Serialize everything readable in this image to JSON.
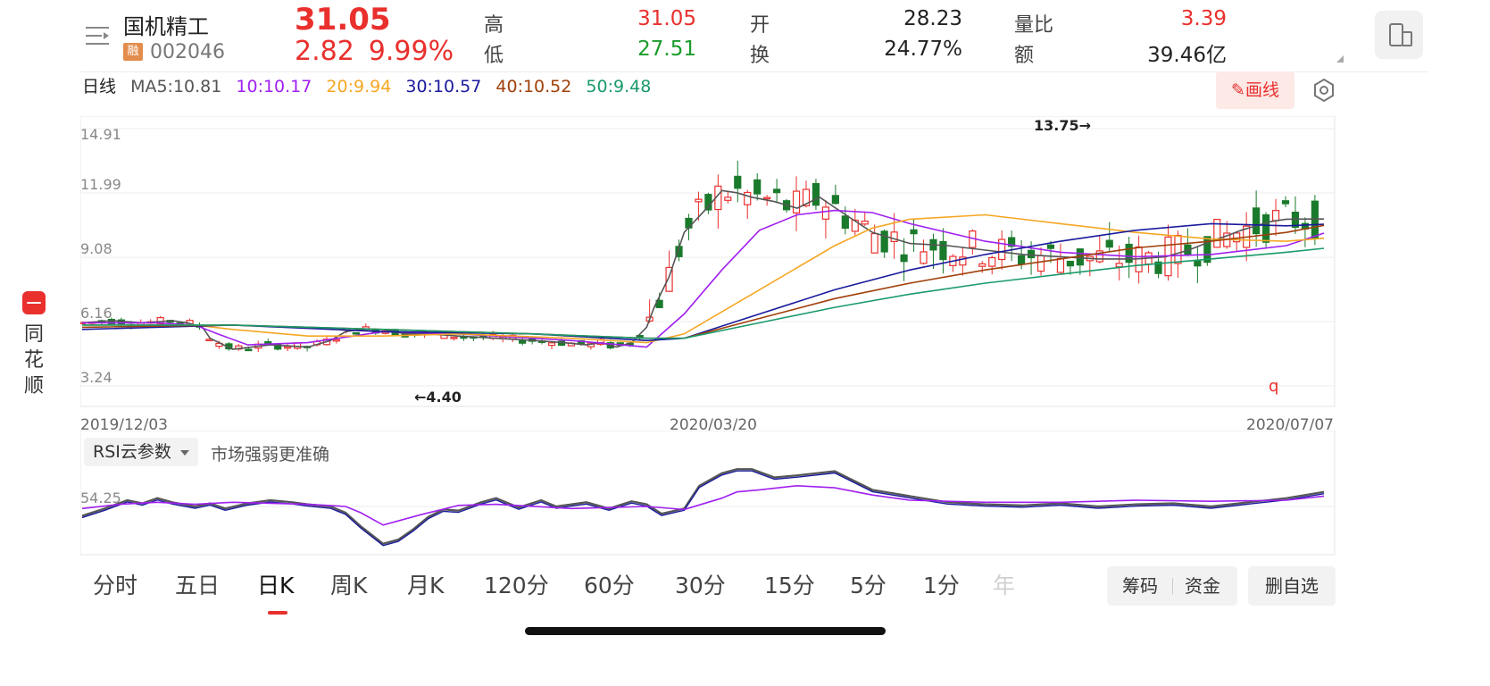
{
  "brand": {
    "chars": [
      "同",
      "花",
      "顺"
    ]
  },
  "header": {
    "name": "国机精工",
    "margin_badge": "融",
    "code": "002046",
    "price": "31.05",
    "change": "2.82",
    "change_pct": "9.99%",
    "high_label": "高",
    "high_value": "31.05",
    "low_label": "低",
    "low_value": "27.51",
    "open_label": "开",
    "open_value": "28.23",
    "turnover_label": "换",
    "turnover_value": "24.77%",
    "volratio_label": "量比",
    "volratio_value": "3.39",
    "amount_label": "额",
    "amount_value": "39.46亿"
  },
  "ma": {
    "period": "日线",
    "ma5": "MA5:10.81",
    "ma10": "10:10.17",
    "ma20": "20:9.94",
    "ma30": "30:10.57",
    "ma40": "40:10.52",
    "ma50": "50:9.48"
  },
  "draw_button": "画线",
  "colors": {
    "up": "#e9302d",
    "down": "#1a7a2c",
    "ma5": "#555555",
    "ma10": "#a020f0",
    "ma20": "#f5a623",
    "ma30": "#1a1a9c",
    "ma40": "#a0400a",
    "ma50": "#1a9a6a"
  },
  "chart_data": [
    {
      "type": "line",
      "title": "日线",
      "y_ticks": [
        "14.91",
        "11.99",
        "9.08",
        "6.16",
        "3.24"
      ],
      "x_ticks": [
        "2019/12/03",
        "2020/03/20",
        "2020/07/07"
      ],
      "ylim": [
        3.24,
        14.91
      ],
      "annotations": {
        "max_label": "13.75→",
        "min_label": "←4.40",
        "end_marker": "q"
      },
      "series": [
        {
          "name": "MA5",
          "x": [
            0,
            8,
            16,
            24,
            28,
            32,
            34,
            40,
            50,
            60,
            66,
            70,
            74,
            80,
            86,
            92,
            100,
            110,
            120,
            128,
            134,
            138,
            142,
            146,
            150,
            152,
            156,
            160,
            166,
            170,
            174,
            178,
            184,
            190,
            196,
            202,
            210,
            220,
            230,
            240,
            250,
            260,
            270,
            280,
            288,
            294,
            300,
            305,
            308,
            312,
            316,
            320,
            326,
            330
          ],
          "values": [
            6.1,
            6.2,
            6.1,
            6.2,
            6.1,
            5.9,
            5.4,
            4.9,
            5.1,
            5.0,
            5.3,
            5.7,
            5.8,
            5.8,
            5.6,
            5.6,
            5.5,
            5.4,
            5.3,
            5.2,
            5.1,
            5.2,
            5.0,
            5.2,
            5.9,
            6.8,
            8.2,
            10.2,
            11.3,
            12.1,
            12.0,
            11.8,
            11.6,
            11.3,
            11.8,
            11.1,
            10.2,
            9.7,
            9.6,
            9.4,
            9.2,
            9.1,
            9.0,
            9.0,
            9.1,
            9.4,
            9.8,
            10.1,
            10.3,
            10.5,
            10.7,
            10.8,
            10.81,
            10.81
          ]
        },
        {
          "name": "MA10",
          "x": [
            0,
            20,
            30,
            36,
            44,
            60,
            80,
            100,
            130,
            150,
            160,
            170,
            180,
            190,
            200,
            210,
            220,
            240,
            260,
            280,
            300,
            320,
            330
          ],
          "values": [
            6.1,
            6.1,
            6.0,
            5.6,
            5.1,
            5.2,
            5.7,
            5.6,
            5.3,
            5.0,
            6.5,
            8.5,
            10.3,
            11.0,
            11.2,
            11.1,
            10.6,
            9.8,
            9.3,
            9.1,
            9.2,
            9.6,
            10.17
          ]
        },
        {
          "name": "MA20",
          "x": [
            0,
            30,
            40,
            60,
            80,
            100,
            130,
            150,
            160,
            180,
            200,
            210,
            220,
            240,
            260,
            280,
            300,
            320,
            330
          ],
          "values": [
            6.0,
            6.0,
            5.8,
            5.5,
            5.5,
            5.6,
            5.4,
            5.2,
            5.6,
            7.6,
            9.6,
            10.4,
            10.8,
            11.0,
            10.6,
            10.2,
            9.9,
            9.8,
            9.94
          ]
        },
        {
          "name": "MA30",
          "x": [
            0,
            40,
            80,
            120,
            150,
            160,
            180,
            200,
            220,
            240,
            260,
            280,
            300,
            320,
            330
          ],
          "values": [
            5.8,
            6.0,
            5.7,
            5.6,
            5.3,
            5.4,
            6.5,
            7.6,
            8.5,
            9.2,
            9.8,
            10.3,
            10.6,
            10.5,
            10.57
          ]
        },
        {
          "name": "MA40",
          "x": [
            0,
            40,
            80,
            120,
            150,
            160,
            180,
            200,
            220,
            240,
            260,
            280,
            300,
            320,
            330
          ],
          "values": [
            5.9,
            6.0,
            5.8,
            5.6,
            5.4,
            5.4,
            6.3,
            7.2,
            7.9,
            8.5,
            9.0,
            9.5,
            9.8,
            10.2,
            10.52
          ]
        },
        {
          "name": "MA50",
          "x": [
            0,
            40,
            80,
            120,
            150,
            160,
            180,
            200,
            220,
            240,
            260,
            280,
            300,
            320,
            330
          ],
          "values": [
            6.0,
            6.0,
            5.8,
            5.6,
            5.4,
            5.4,
            6.1,
            6.8,
            7.4,
            7.9,
            8.3,
            8.7,
            9.0,
            9.3,
            9.48
          ]
        }
      ]
    },
    {
      "type": "line",
      "title": "RSI",
      "y_ticks": [
        "54.25"
      ],
      "ylim": [
        0,
        100
      ],
      "series": [
        {
          "name": "RSI1",
          "x": [
            0,
            6,
            12,
            16,
            20,
            24,
            30,
            34,
            38,
            44,
            50,
            56,
            60,
            66,
            70,
            74,
            80,
            84,
            88,
            92,
            96,
            100,
            106,
            110,
            116,
            122,
            126,
            130,
            134,
            140,
            146,
            150,
            154,
            160,
            164,
            170,
            174,
            178,
            184,
            190,
            200,
            210,
            220,
            230,
            240,
            250,
            260,
            270,
            280,
            290,
            300,
            310,
            320,
            330
          ],
          "values": [
            35,
            42,
            50,
            47,
            52,
            48,
            44,
            47,
            42,
            47,
            50,
            48,
            46,
            44,
            38,
            25,
            8,
            12,
            22,
            34,
            41,
            40,
            48,
            52,
            43,
            50,
            44,
            46,
            48,
            42,
            49,
            46,
            37,
            42,
            64,
            76,
            80,
            80,
            72,
            74,
            78,
            60,
            54,
            48,
            46,
            45,
            47,
            44,
            46,
            47,
            44,
            48,
            52,
            58
          ]
        },
        {
          "name": "RSI2",
          "x": [
            0,
            10,
            20,
            30,
            40,
            60,
            70,
            74,
            80,
            90,
            100,
            110,
            130,
            150,
            160,
            170,
            174,
            180,
            190,
            200,
            210,
            220,
            240,
            260,
            280,
            300,
            320,
            330
          ],
          "values": [
            42,
            46,
            48,
            46,
            48,
            46,
            44,
            38,
            26,
            36,
            45,
            46,
            42,
            44,
            41,
            52,
            58,
            60,
            64,
            62,
            55,
            50,
            48,
            48,
            50,
            49,
            50,
            54
          ]
        }
      ]
    }
  ],
  "rsi_panel": {
    "selector": "RSI云参数",
    "hint": "市场强弱更准确"
  },
  "tabs": [
    "分时",
    "五日",
    "日K",
    "周K",
    "月K",
    "120分",
    "60分",
    "30分",
    "15分",
    "5分",
    "1分",
    "年"
  ],
  "active_tab": "日K",
  "actions": {
    "chips": "筹码",
    "funds": "资金",
    "remove": "删自选"
  }
}
